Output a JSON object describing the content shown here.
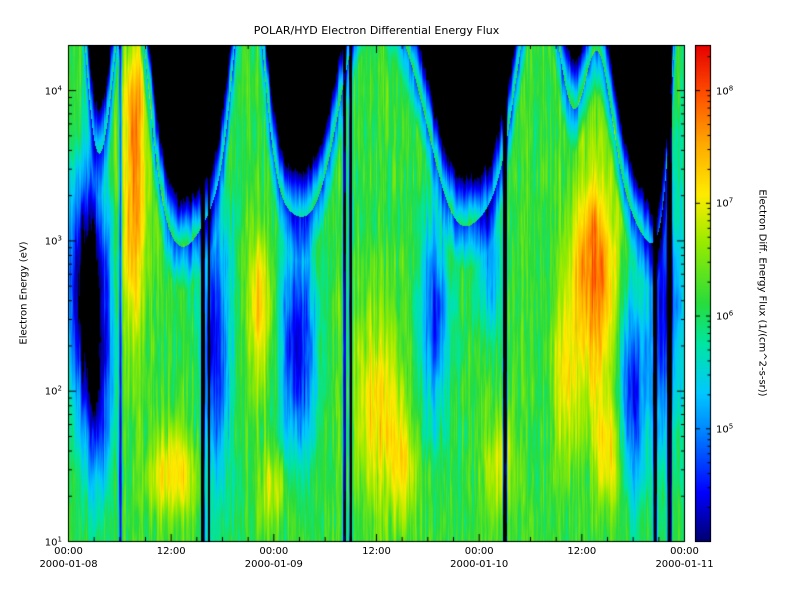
{
  "figure": {
    "background": "#ffffff",
    "frame_color": "#000000"
  },
  "chart_data": {
    "type": "heatmap",
    "title": "POLAR/HYD  Electron Differential Energy Flux",
    "xaxis": {
      "range_days": [
        0,
        3
      ],
      "major_ticks_days": [
        0,
        0.5,
        1,
        1.5,
        2,
        2.5,
        3
      ],
      "tick_labels": [
        "00:00",
        "12:00",
        "00:00",
        "12:00",
        "00:00",
        "12:00",
        "00:00"
      ],
      "minor_tick_hours": 3,
      "date_labels": [
        {
          "day": 0,
          "label": "2000-01-08"
        },
        {
          "day": 1,
          "label": "2000-01-09"
        },
        {
          "day": 2,
          "label": "2000-01-10"
        },
        {
          "day": 3,
          "label": "2000-01-11"
        }
      ]
    },
    "yaxis": {
      "label": "Electron Energy (eV)",
      "log_range": [
        1.0,
        4.3
      ],
      "tick_exponents": [
        1,
        2,
        3,
        4
      ],
      "mantissa": "10"
    },
    "colorbar": {
      "label": "Electron Diff. Energy Flux (1/(cm^2-s-sr))",
      "log_range": [
        4.0,
        8.4
      ],
      "tick_exponents": [
        5,
        6,
        7,
        8
      ],
      "mantissa": "10",
      "stops": [
        [
          0.0,
          [
            0,
            0,
            110
          ]
        ],
        [
          0.1,
          [
            0,
            0,
            255
          ]
        ],
        [
          0.22,
          [
            0,
            130,
            255
          ]
        ],
        [
          0.3,
          [
            0,
            200,
            255
          ]
        ],
        [
          0.4,
          [
            0,
            230,
            160
          ]
        ],
        [
          0.48,
          [
            40,
            220,
            60
          ]
        ],
        [
          0.6,
          [
            150,
            235,
            0
          ]
        ],
        [
          0.7,
          [
            255,
            235,
            0
          ]
        ],
        [
          0.8,
          [
            255,
            170,
            0
          ]
        ],
        [
          0.9,
          [
            255,
            80,
            0
          ]
        ],
        [
          1.0,
          [
            230,
            0,
            0
          ]
        ]
      ]
    },
    "model": {
      "base_log_flux": 6.15,
      "cutoff_base": 3.05,
      "cutoff_sharpness": 7,
      "rim_width": 0.3,
      "rim_depth": 1.3,
      "events": [
        {
          "t": 0.02,
          "w": 0.06,
          "peak": 4.9
        },
        {
          "t": 0.3,
          "w": 0.08,
          "peak": 4.95
        },
        {
          "t": 0.88,
          "w": 0.07,
          "peak": 4.9
        },
        {
          "t": 1.5,
          "w": 0.17,
          "peak": 4.65
        },
        {
          "t": 2.28,
          "w": 0.11,
          "peak": 4.85
        },
        {
          "t": 2.57,
          "w": 0.07,
          "peak": 4.15
        },
        {
          "t": 2.99,
          "w": 0.05,
          "peak": 4.9
        }
      ],
      "enhancements": [
        {
          "t": 0.315,
          "w": 0.05,
          "e": 3.1,
          "ew": 0.55,
          "amp": 1.35
        },
        {
          "t": 0.33,
          "w": 0.04,
          "e": 3.9,
          "ew": 0.35,
          "amp": 1.0
        },
        {
          "t": 0.52,
          "w": 0.09,
          "e": 1.45,
          "ew": 0.22,
          "amp": 1.0
        },
        {
          "t": 0.93,
          "w": 0.04,
          "e": 2.55,
          "ew": 0.35,
          "amp": 1.2
        },
        {
          "t": 1.0,
          "w": 0.05,
          "e": 1.35,
          "ew": 0.2,
          "amp": 0.8
        },
        {
          "t": 1.5,
          "w": 0.09,
          "e": 1.9,
          "ew": 0.45,
          "amp": 1.05
        },
        {
          "t": 1.63,
          "w": 0.04,
          "e": 1.5,
          "ew": 0.25,
          "amp": 0.9
        },
        {
          "t": 2.1,
          "w": 0.05,
          "e": 1.5,
          "ew": 0.25,
          "amp": 0.85
        },
        {
          "t": 2.42,
          "w": 0.04,
          "e": 2.1,
          "ew": 0.4,
          "amp": 0.9
        },
        {
          "t": 2.56,
          "w": 0.08,
          "e": 2.75,
          "ew": 0.55,
          "amp": 1.75
        },
        {
          "t": 2.63,
          "w": 0.05,
          "e": 1.6,
          "ew": 0.3,
          "amp": 1.0
        }
      ],
      "depressions": [
        {
          "t": 0.1,
          "w": 0.075,
          "e": 2.7,
          "ew": 0.55,
          "depth": 2.6
        },
        {
          "t": 0.14,
          "w": 0.05,
          "e": 1.9,
          "ew": 0.45,
          "depth": 1.3
        },
        {
          "t": 0.72,
          "w": 0.05,
          "e": 2.3,
          "ew": 0.7,
          "depth": 1.7
        },
        {
          "t": 1.12,
          "w": 0.06,
          "e": 2.3,
          "ew": 0.55,
          "depth": 1.9
        },
        {
          "t": 1.78,
          "w": 0.05,
          "e": 2.5,
          "ew": 0.5,
          "depth": 1.5
        },
        {
          "t": 2.05,
          "w": 0.04,
          "e": 2.9,
          "ew": 0.4,
          "depth": 1.2
        },
        {
          "t": 2.74,
          "w": 0.05,
          "e": 2.0,
          "ew": 0.5,
          "depth": 1.6
        },
        {
          "t": 2.9,
          "w": 0.06,
          "e": 2.6,
          "ew": 0.7,
          "depth": 1.7
        }
      ],
      "gaps": [
        {
          "t": 0.255,
          "w": 0.006,
          "depth": 1.6
        },
        {
          "t": 0.655,
          "w": 0.009,
          "depth": 3.0
        },
        {
          "t": 0.685,
          "w": 0.006,
          "depth": 2.4
        },
        {
          "t": 1.345,
          "w": 0.008,
          "depth": 2.2
        },
        {
          "t": 1.375,
          "w": 0.007,
          "depth": 3.0
        },
        {
          "t": 2.125,
          "w": 0.01,
          "depth": 3.0
        },
        {
          "t": 2.855,
          "w": 0.008,
          "depth": 3.0
        },
        {
          "t": 2.925,
          "w": 0.01,
          "depth": 3.2
        }
      ],
      "noise": {
        "tf": 100,
        "ef": 3.5,
        "amp": 0.85,
        "col_tf": 180,
        "col_amp": 0.5
      }
    }
  }
}
